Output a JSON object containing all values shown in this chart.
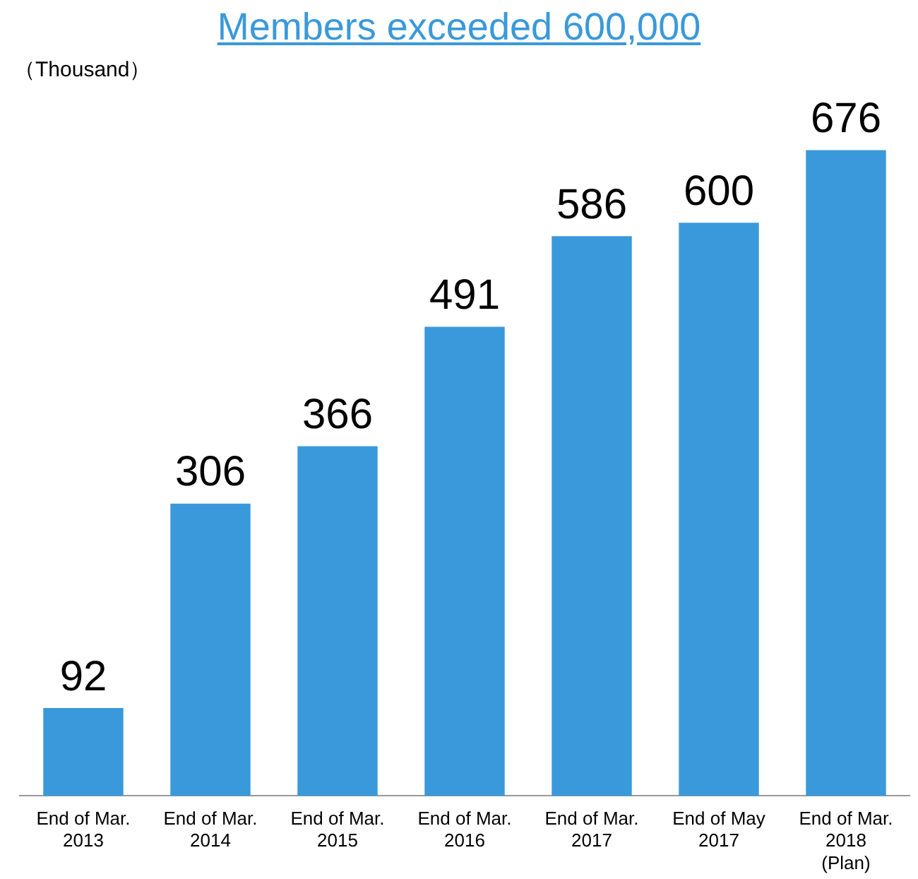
{
  "chart_data": {
    "type": "bar",
    "title": "Members exceeded 600,000",
    "ylabel": "（Thousand）",
    "categories": [
      "End of Mar.\n2013",
      "End of Mar.\n2014",
      "End of Mar.\n2015",
      "End of Mar.\n2016",
      "End of Mar.\n2017",
      "End of May\n2017",
      "End of Mar.\n2018\n(Plan)"
    ],
    "values": [
      92,
      306,
      366,
      491,
      586,
      600,
      676
    ],
    "color": "#3a99da",
    "data_labels": true,
    "relative": false,
    "grid": false,
    "legend": false
  }
}
